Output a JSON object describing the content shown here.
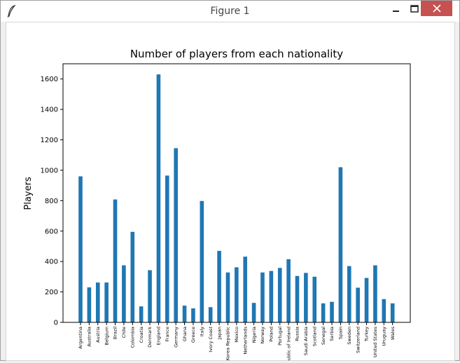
{
  "window": {
    "title": "Figure 1"
  },
  "chart_data": {
    "type": "bar",
    "title": "Number of players from each nationality",
    "xlabel": "",
    "ylabel": "Players",
    "ylim": [
      0,
      1700
    ],
    "yticks": [
      0,
      200,
      400,
      600,
      800,
      1000,
      1200,
      1400,
      1600
    ],
    "bar_color": "#1f77b4",
    "categories": [
      "Argentina",
      "Australia",
      "Austria",
      "Belgium",
      "Brazil",
      "Chile",
      "Colombia",
      "Croatia",
      "Denmark",
      "England",
      "France",
      "Germany",
      "Ghana",
      "Greece",
      "Italy",
      "Ivory Coast",
      "Japan",
      "Korea Republic",
      "Mexico",
      "Netherlands",
      "Nigeria",
      "Norway",
      "Poland",
      "Portugal",
      "Republic of Ireland",
      "Russia",
      "Saudi Arabia",
      "Scotland",
      "Senegal",
      "Serbia",
      "Spain",
      "Sweden",
      "Switzerland",
      "Turkey",
      "United States",
      "Uruguay",
      "Wales"
    ],
    "values": [
      960,
      230,
      262,
      262,
      808,
      375,
      595,
      105,
      343,
      1630,
      965,
      1145,
      110,
      92,
      798,
      100,
      470,
      328,
      362,
      432,
      128,
      328,
      338,
      358,
      415,
      305,
      325,
      300,
      125,
      135,
      1020,
      370,
      228,
      292,
      375,
      153,
      125
    ]
  }
}
